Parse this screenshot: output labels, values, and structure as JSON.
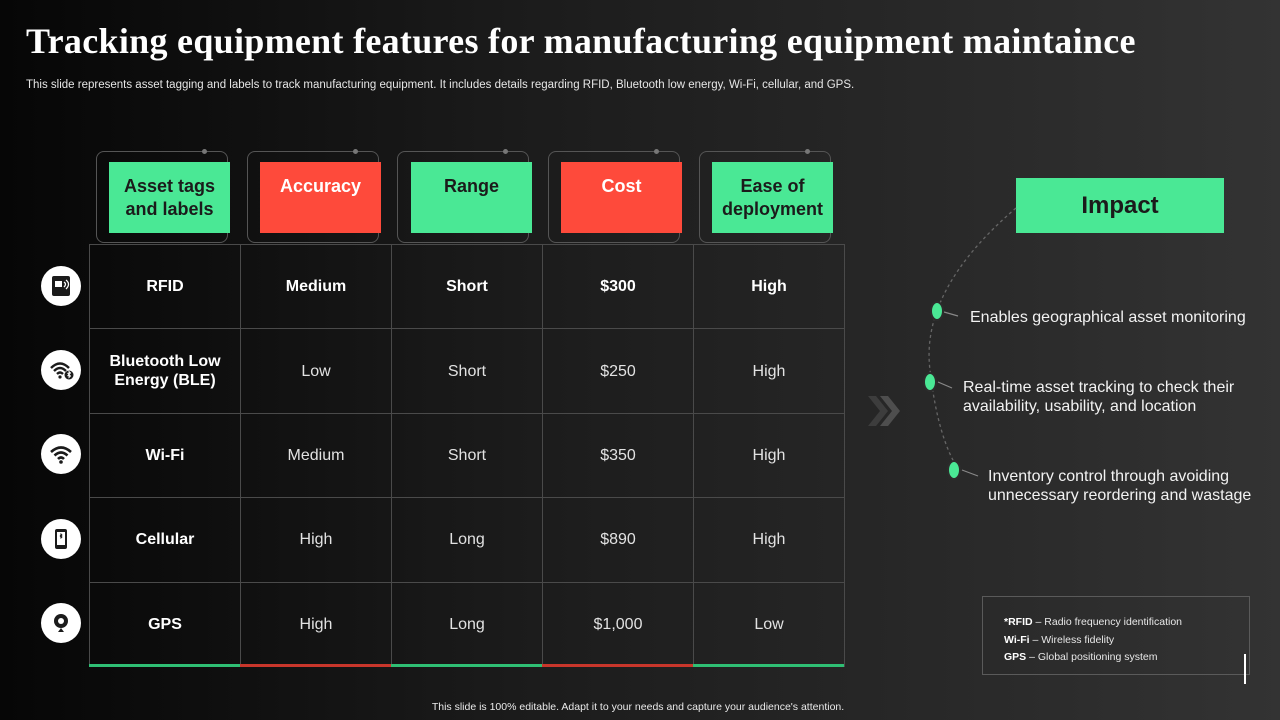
{
  "title": "Tracking equipment features for manufacturing equipment maintaince",
  "subtitle": "This slide represents asset tagging and labels to track manufacturing equipment. It includes details regarding RFID, Bluetooth low energy, Wi-Fi,  cellular, and GPS.",
  "columns": [
    {
      "label": "Asset tags and labels",
      "color": "#4ae895"
    },
    {
      "label": "Accuracy",
      "color": "#fe4a3b"
    },
    {
      "label": "Range",
      "color": "#4ae895"
    },
    {
      "label": "Cost",
      "color": "#fe4a3b"
    },
    {
      "label": "Ease of deployment",
      "color": "#4ae895"
    }
  ],
  "rows": [
    {
      "icon": "rfid-icon",
      "cells": [
        "RFID",
        "Medium",
        "Short",
        "$300",
        "High"
      ]
    },
    {
      "icon": "bluetooth-wifi-icon",
      "cells": [
        "Bluetooth Low Energy (BLE)",
        "Low",
        "Short",
        "$250",
        "High"
      ]
    },
    {
      "icon": "wifi-icon",
      "cells": [
        "Wi-Fi",
        "Medium",
        "Short",
        "$350",
        "High"
      ]
    },
    {
      "icon": "cellular-phone-icon",
      "cells": [
        "Cellular",
        "High",
        "Long",
        "$890",
        "High"
      ]
    },
    {
      "icon": "gps-icon",
      "cells": [
        "GPS",
        "High",
        "Long",
        "$1,000",
        "Low"
      ]
    }
  ],
  "impact": {
    "title": "Impact",
    "items": [
      "Enables geographical asset monitoring",
      "Real-time asset tracking to check their availability,  usability, and location",
      "Inventory  control through  avoiding unnecessary  reordering and wastage"
    ]
  },
  "legend": [
    {
      "term": "*RFID",
      "definition": " – Radio frequency identification"
    },
    {
      "term": "Wi-Fi",
      "definition": " – Wireless fidelity"
    },
    {
      "term": "GPS",
      "definition": " – Global positioning system"
    }
  ],
  "footer": "This slide is 100% editable.  Adapt it to your needs and capture your audience's attention.",
  "colors": {
    "green": "#4ae895",
    "red": "#fe4a3b"
  }
}
